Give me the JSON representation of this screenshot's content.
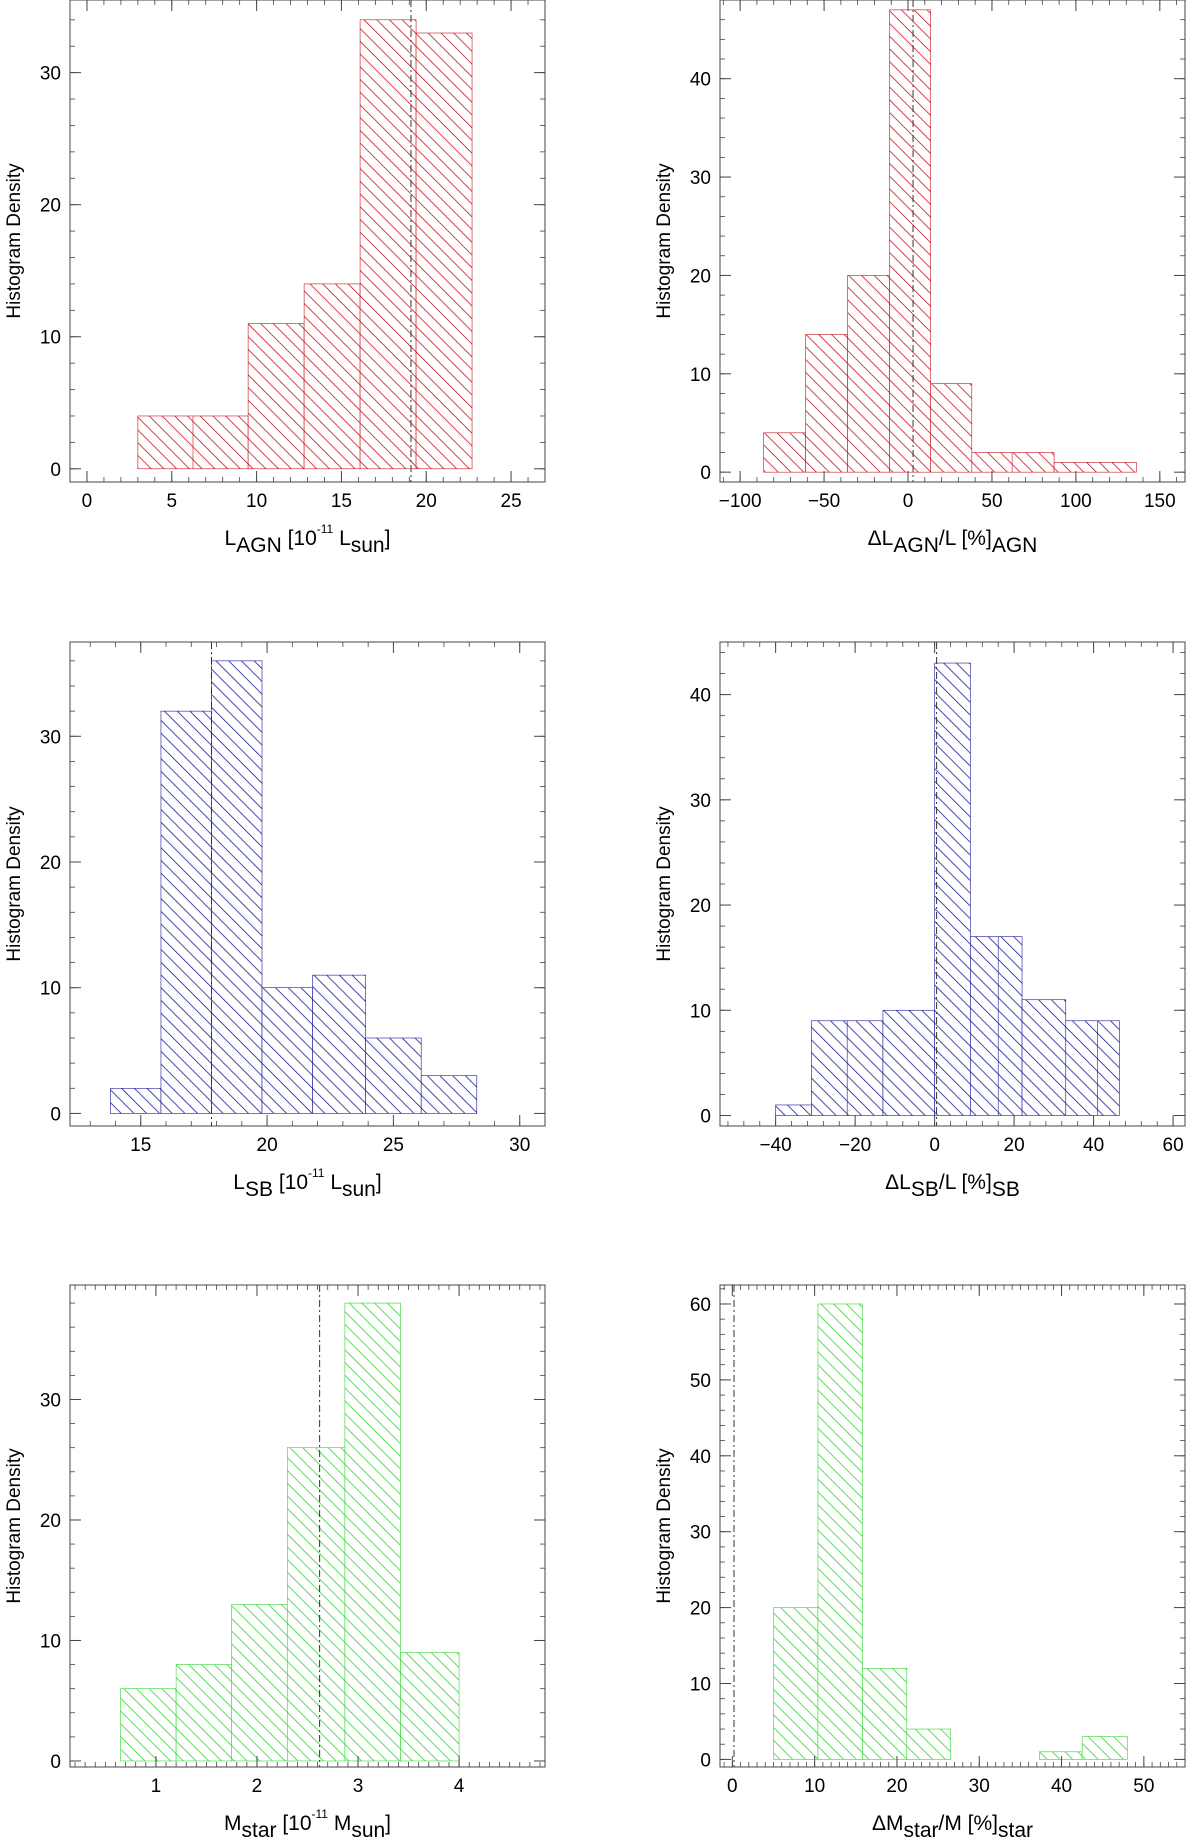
{
  "colors": {
    "red": "#c8141e",
    "blue": "#1a1a9e",
    "green": "#33d633",
    "axis": "#444444",
    "refline": "#333333"
  },
  "chart_data": [
    {
      "type": "bar",
      "ylabel": "Histogram Density",
      "xlabel": {
        "main": "L",
        "sub": "AGN",
        "rest": " [10",
        "sup": "-11",
        "rest2": " L",
        "sub2": "sun",
        "rest3": "]"
      },
      "xlim": [
        -1,
        27
      ],
      "ylim": [
        -1,
        35.5
      ],
      "xticks": [
        "0",
        "5",
        "10",
        "15",
        "20",
        "25"
      ],
      "xtick_values": [
        0,
        5,
        10,
        15,
        20,
        25
      ],
      "xminor_step": 1,
      "yticks": [
        "0",
        "10",
        "20",
        "30"
      ],
      "ytick_values": [
        0,
        10,
        20,
        30
      ],
      "yminor_step": 2,
      "bins": [
        [
          3,
          9.5,
          4
        ],
        [
          9.5,
          12.8,
          11
        ],
        [
          12.8,
          16.1,
          14
        ],
        [
          16.1,
          19.4,
          34
        ],
        [
          19.4,
          22.7,
          33
        ]
      ],
      "dividers": [
        6.25
      ],
      "refline": 19.1,
      "color": "red"
    },
    {
      "type": "bar",
      "ylabel": "Histogram Density",
      "xlabel": {
        "main": "ΔL",
        "sub": "AGN",
        "rest": "/L",
        "sub2": "AGN",
        "rest2": " [%]"
      },
      "xlim": [
        -112,
        165
      ],
      "ylim": [
        -1,
        48
      ],
      "xticks": [
        "−100",
        "−50",
        "0",
        "50",
        "100",
        "150"
      ],
      "xtick_values": [
        -100,
        -50,
        0,
        50,
        100,
        150
      ],
      "xminor_step": 10,
      "yticks": [
        "0",
        "10",
        "20",
        "30",
        "40"
      ],
      "ytick_values": [
        0,
        10,
        20,
        30,
        40
      ],
      "yminor_step": 2,
      "bins": [
        [
          -86,
          -61,
          4
        ],
        [
          -61,
          -36,
          14
        ],
        [
          -36,
          -11,
          20
        ],
        [
          -11,
          13.5,
          47
        ],
        [
          13.5,
          38,
          9
        ],
        [
          38,
          87,
          2
        ],
        [
          87,
          136,
          1
        ]
      ],
      "dividers": [
        62
      ],
      "refline": 3,
      "color": "red"
    },
    {
      "type": "bar",
      "ylabel": "Histogram Density",
      "xlabel": {
        "main": "L",
        "sub": "SB",
        "rest": " [10",
        "sup": "-11",
        "rest2": " L",
        "sub2": "sun",
        "rest3": "]"
      },
      "xlim": [
        12.2,
        31
      ],
      "ylim": [
        -1,
        37.5
      ],
      "xticks": [
        "15",
        "20",
        "25",
        "30"
      ],
      "xtick_values": [
        15,
        20,
        25,
        30
      ],
      "xminor_step": 1,
      "yticks": [
        "0",
        "10",
        "20",
        "30"
      ],
      "ytick_values": [
        0,
        10,
        20,
        30
      ],
      "yminor_step": 2,
      "bins": [
        [
          13.8,
          15.8,
          2
        ],
        [
          15.8,
          17.8,
          32
        ],
        [
          17.8,
          19.8,
          36
        ],
        [
          19.8,
          21.8,
          10
        ],
        [
          21.8,
          23.9,
          11
        ],
        [
          23.9,
          26.1,
          6
        ],
        [
          26.1,
          28.3,
          3
        ]
      ],
      "dividers": [],
      "refline": 17.8,
      "color": "blue"
    },
    {
      "type": "bar",
      "ylabel": "Histogram Density",
      "xlabel": {
        "main": "ΔL",
        "sub": "SB",
        "rest": "/L",
        "sub2": "SB",
        "rest2": " [%]"
      },
      "xlim": [
        -54,
        63
      ],
      "ylim": [
        -1,
        45
      ],
      "xticks": [
        "−40",
        "−20",
        "0",
        "20",
        "40",
        "60"
      ],
      "xtick_values": [
        -40,
        -20,
        0,
        20,
        40,
        60
      ],
      "xminor_step": 4,
      "yticks": [
        "0",
        "10",
        "20",
        "30",
        "40"
      ],
      "ytick_values": [
        0,
        10,
        20,
        30,
        40
      ],
      "yminor_step": 2,
      "bins": [
        [
          -40,
          -31,
          1
        ],
        [
          -31,
          -13,
          9
        ],
        [
          -13,
          0,
          10
        ],
        [
          0,
          9,
          43
        ],
        [
          9,
          22,
          17
        ],
        [
          22,
          33,
          11
        ],
        [
          33,
          46.5,
          9
        ]
      ],
      "dividers": [
        -22,
        16,
        41
      ],
      "refline": 0.5,
      "color": "blue"
    },
    {
      "type": "bar",
      "ylabel": "Histogram Density",
      "xlabel": {
        "main": "M",
        "sub": "star",
        "rest": " [10",
        "sup": "-11",
        "rest2": " M",
        "sub2": "sun",
        "rest3": "]"
      },
      "xlim": [
        0.15,
        4.85
      ],
      "ylim": [
        -0.5,
        39.5
      ],
      "xticks": [
        "1",
        "2",
        "3",
        "4"
      ],
      "xtick_values": [
        1,
        2,
        3,
        4
      ],
      "xminor_step": 0.1,
      "yticks": [
        "0",
        "10",
        "20",
        "30"
      ],
      "ytick_values": [
        0,
        10,
        20,
        30
      ],
      "yminor_step": 2,
      "bins": [
        [
          0.65,
          1.2,
          6
        ],
        [
          1.2,
          1.75,
          8
        ],
        [
          1.75,
          2.3,
          13
        ],
        [
          2.3,
          2.87,
          26
        ],
        [
          2.87,
          3.42,
          38
        ],
        [
          3.42,
          4.0,
          9
        ]
      ],
      "dividers": [],
      "refline": 2.62,
      "color": "green"
    },
    {
      "type": "bar",
      "ylabel": "Histogram Density",
      "xlabel": {
        "main": "ΔM",
        "sub": "star",
        "rest": "/M",
        "sub2": "star",
        "rest2": " [%]"
      },
      "xlim": [
        -1.5,
        55
      ],
      "ylim": [
        -1,
        62.5
      ],
      "xticks": [
        "0",
        "10",
        "20",
        "30",
        "40",
        "50"
      ],
      "xtick_values": [
        0,
        10,
        20,
        30,
        40,
        50
      ],
      "xminor_step": 1,
      "yticks": [
        "0",
        "10",
        "20",
        "30",
        "40",
        "50",
        "60"
      ],
      "ytick_values": [
        0,
        10,
        20,
        30,
        40,
        50,
        60
      ],
      "yminor_step": 2,
      "bins": [
        [
          5,
          10.4,
          20
        ],
        [
          10.4,
          15.8,
          60
        ],
        [
          15.8,
          21.2,
          12
        ],
        [
          21.2,
          26.5,
          4
        ],
        [
          37.3,
          42.5,
          1
        ],
        [
          42.5,
          48,
          3
        ]
      ],
      "dividers": [],
      "refline": 0.2,
      "color": "green"
    }
  ]
}
